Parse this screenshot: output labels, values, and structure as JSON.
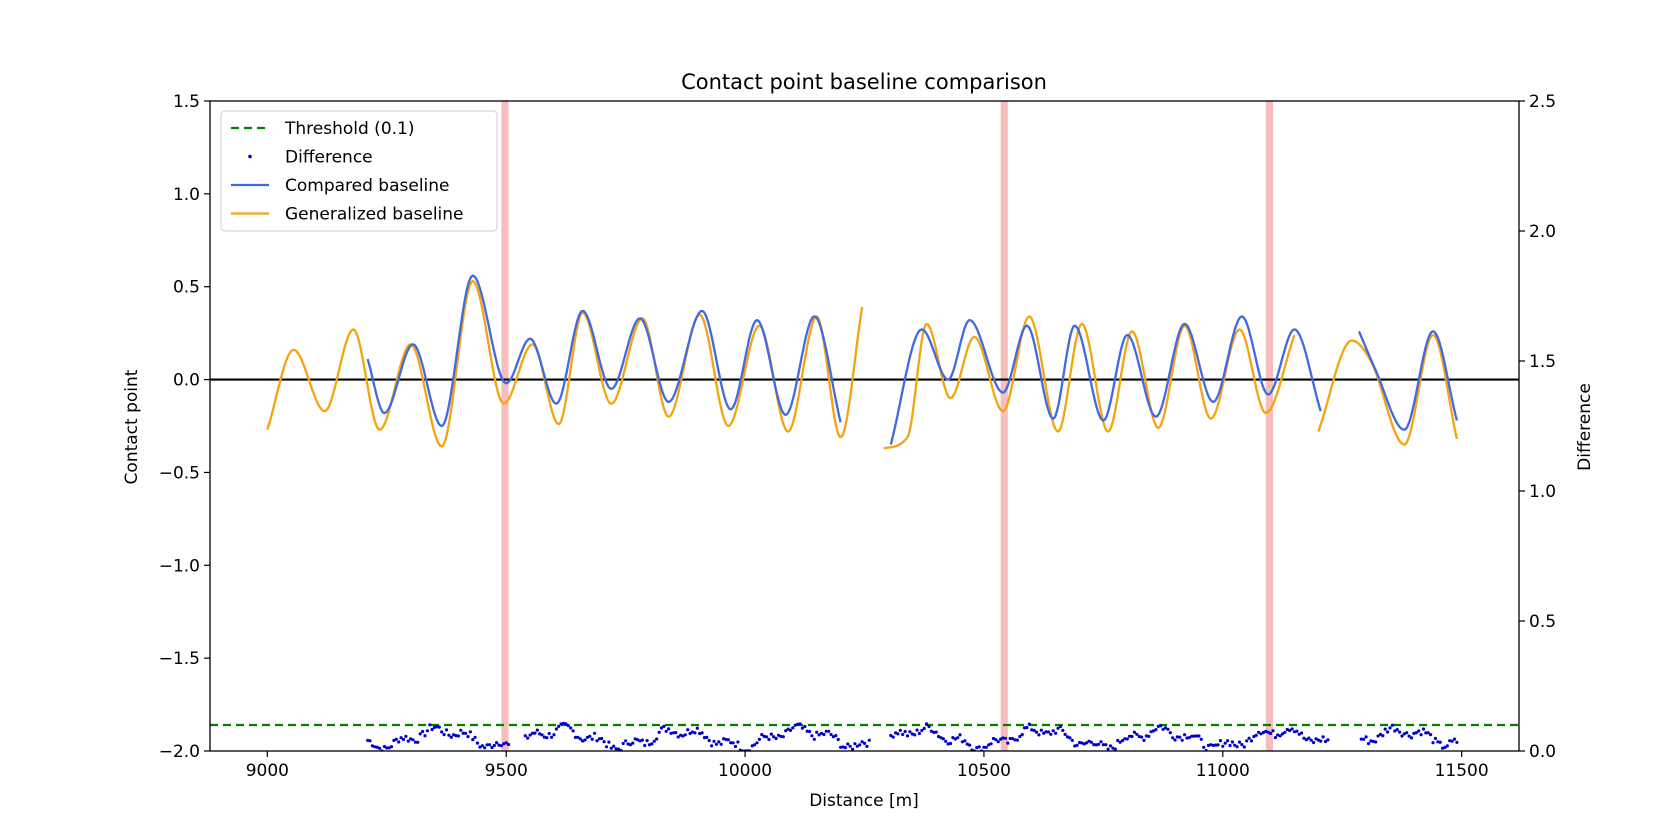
{
  "chart_data": {
    "type": "line",
    "title": "Contact point baseline comparison",
    "xlabel": "Distance [m]",
    "ylabel": "Contact point",
    "ylabel_right": "Difference",
    "xlim": [
      8880,
      11620
    ],
    "ylim": [
      -2.0,
      1.5
    ],
    "ylim_right": [
      0.0,
      2.5
    ],
    "x_ticks": [
      9000,
      9500,
      10000,
      10500,
      11000,
      11500
    ],
    "x_tick_labels": [
      "9000",
      "9500",
      "10000",
      "10500",
      "11000",
      "11500"
    ],
    "y_ticks": [
      1.5,
      1.0,
      0.5,
      0.0,
      -0.5,
      -1.0,
      -1.5,
      -2.0
    ],
    "y_tick_labels": [
      "1.5",
      "1.0",
      "0.5",
      "0.0",
      "−0.5",
      "−1.0",
      "−1.5",
      "−2.0"
    ],
    "y_right_ticks": [
      2.5,
      2.0,
      1.5,
      1.0,
      0.5,
      0.0
    ],
    "y_right_tick_labels": [
      "2.5",
      "2.0",
      "1.5",
      "1.0",
      "0.5",
      "0.0"
    ],
    "grid": false,
    "legend_position": "upper-left",
    "reference_line_y": 0.0,
    "threshold": 0.1,
    "highlight_regions": [
      [
        9490,
        9505
      ],
      [
        10535,
        10550
      ],
      [
        11090,
        11105
      ]
    ],
    "series": [
      {
        "name": "Threshold (0.1)",
        "role": "threshold",
        "axis": "right",
        "color": "#008000",
        "style": "dashed",
        "x": [
          8880,
          11620
        ],
        "y": [
          0.1,
          0.1
        ]
      },
      {
        "name": "Difference",
        "role": "difference",
        "axis": "right",
        "color": "#0000cc",
        "style": "dots",
        "x_range": [
          9210,
          11490
        ],
        "y_range": [
          0.0,
          0.12
        ],
        "gaps": [
          [
            9510,
            9535
          ],
          [
            10265,
            10300
          ],
          [
            11225,
            11285
          ]
        ]
      },
      {
        "name": "Compared baseline",
        "role": "compared",
        "axis": "left",
        "color": "#4169e1",
        "style": "solid",
        "segments": [
          {
            "x": [
              9210,
              9245,
              9305,
              9365,
              9430,
              9500,
              9550,
              9605,
              9660,
              9720,
              9780,
              9840,
              9910,
              9970,
              10025,
              10085,
              10145,
              10200
            ],
            "y": [
              0.11,
              -0.18,
              0.19,
              -0.25,
              0.56,
              -0.02,
              0.22,
              -0.13,
              0.37,
              -0.05,
              0.33,
              -0.12,
              0.37,
              -0.16,
              0.32,
              -0.19,
              0.34,
              -0.23
            ]
          },
          {
            "x": [
              10305,
              10370,
              10425,
              10470,
              10540,
              10590,
              10645,
              10690,
              10750,
              10800,
              10860,
              10920,
              10980,
              11040,
              11095,
              11150,
              11205
            ],
            "y": [
              -0.35,
              0.27,
              0.0,
              0.32,
              -0.07,
              0.29,
              -0.21,
              0.29,
              -0.22,
              0.24,
              -0.2,
              0.3,
              -0.12,
              0.34,
              -0.08,
              0.27,
              -0.17
            ]
          },
          {
            "x": [
              11285,
              11320,
              11380,
              11440,
              11490
            ],
            "y": [
              0.26,
              0.05,
              -0.27,
              0.26,
              -0.22
            ]
          }
        ]
      },
      {
        "name": "Generalized baseline",
        "role": "generalized",
        "axis": "left",
        "color": "#f5a40f",
        "style": "solid",
        "segments": [
          {
            "x": [
              9000,
              9055,
              9120,
              9180,
              9235,
              9300,
              9365,
              9430,
              9495,
              9555,
              9610,
              9660,
              9720,
              9785,
              9840,
              9905,
              9965,
              10030,
              10090,
              10150,
              10200,
              10245
            ],
            "y": [
              -0.27,
              0.16,
              -0.17,
              0.27,
              -0.27,
              0.19,
              -0.36,
              0.53,
              -0.13,
              0.19,
              -0.24,
              0.36,
              -0.13,
              0.33,
              -0.2,
              0.35,
              -0.25,
              0.29,
              -0.28,
              0.34,
              -0.31,
              0.39
            ]
          },
          {
            "x": [
              10290,
              10340,
              10380,
              10430,
              10480,
              10540,
              10595,
              10655,
              10705,
              10760,
              10810,
              10865,
              10920,
              10975,
              11035,
              11090,
              11150
            ],
            "y": [
              -0.37,
              -0.31,
              0.3,
              -0.1,
              0.23,
              -0.17,
              0.34,
              -0.28,
              0.3,
              -0.28,
              0.26,
              -0.26,
              0.29,
              -0.21,
              0.27,
              -0.18,
              0.24
            ]
          },
          {
            "x": [
              11200,
              11270,
              11310,
              11380,
              11440,
              11490
            ],
            "y": [
              -0.28,
              0.21,
              0.1,
              -0.35,
              0.24,
              -0.32
            ]
          }
        ]
      }
    ]
  }
}
